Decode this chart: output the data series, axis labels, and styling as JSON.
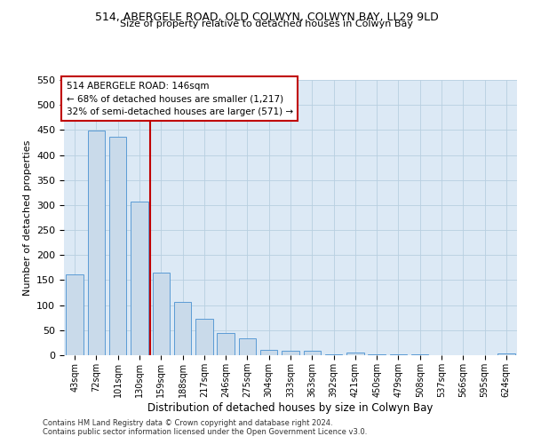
{
  "title1": "514, ABERGELE ROAD, OLD COLWYN, COLWYN BAY, LL29 9LD",
  "title2": "Size of property relative to detached houses in Colwyn Bay",
  "xlabel": "Distribution of detached houses by size in Colwyn Bay",
  "ylabel": "Number of detached properties",
  "categories": [
    "43sqm",
    "72sqm",
    "101sqm",
    "130sqm",
    "159sqm",
    "188sqm",
    "217sqm",
    "246sqm",
    "275sqm",
    "304sqm",
    "333sqm",
    "363sqm",
    "392sqm",
    "421sqm",
    "450sqm",
    "479sqm",
    "508sqm",
    "537sqm",
    "566sqm",
    "595sqm",
    "624sqm"
  ],
  "values": [
    161,
    449,
    436,
    307,
    165,
    107,
    73,
    44,
    33,
    10,
    8,
    8,
    1,
    5,
    2,
    1,
    1,
    0,
    0,
    0,
    4
  ],
  "bar_color": "#c9daea",
  "bar_edge_color": "#5b9bd5",
  "vline_x": 3.5,
  "vline_color": "#c00000",
  "annotation_text": "514 ABERGELE ROAD: 146sqm\n← 68% of detached houses are smaller (1,217)\n32% of semi-detached houses are larger (571) →",
  "annotation_box_color": "#ffffff",
  "annotation_box_edge": "#c00000",
  "ylim": [
    0,
    550
  ],
  "yticks": [
    0,
    50,
    100,
    150,
    200,
    250,
    300,
    350,
    400,
    450,
    500,
    550
  ],
  "bg_color": "#dce9f5",
  "footer1": "Contains HM Land Registry data © Crown copyright and database right 2024.",
  "footer2": "Contains public sector information licensed under the Open Government Licence v3.0."
}
